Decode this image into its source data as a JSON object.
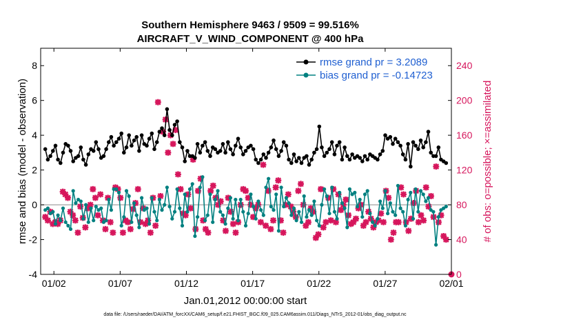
{
  "chart_data": {
    "type": "line",
    "title_line1": "Southern Hemisphere 9463 / 9509 = 99.516%",
    "title_line2": "AIRCRAFT_V_WIND_COMPONENT @ 400 hPa",
    "ylabel_left": "rmse and bias (model - observation)",
    "ylabel_right": "# of obs: o=possible; ×=assimilated",
    "xlabel": "Jan.01,2012 00:00:00 start",
    "footer": "data file: /Users/raeder/DAI/ATM_forcXX/CAM6_setup/f.e21.FHIST_BGC.f09_025.CAM6assim.011/Diags_NTrS_2012-01/obs_diag_output.nc",
    "xlim": [
      0,
      31
    ],
    "ylim_left": [
      -4,
      9
    ],
    "ylim_right": [
      0,
      260
    ],
    "x_ticks": [
      {
        "x": 1,
        "label": "01/02"
      },
      {
        "x": 6,
        "label": "01/07"
      },
      {
        "x": 11,
        "label": "01/12"
      },
      {
        "x": 16,
        "label": "01/17"
      },
      {
        "x": 21,
        "label": "01/22"
      },
      {
        "x": 26,
        "label": "01/27"
      },
      {
        "x": 31,
        "label": "02/01"
      }
    ],
    "y_ticks_left": [
      -4,
      -2,
      0,
      2,
      4,
      6,
      8
    ],
    "y_ticks_right": [
      0,
      40,
      80,
      120,
      160,
      200,
      240
    ],
    "series": [
      {
        "name": "rmse",
        "legend_label": "rmse grand pr = 3.2089",
        "axis": "left",
        "color": "#000000",
        "values": [
          3.2,
          2.6,
          2.8,
          3.1,
          3.4,
          2.6,
          2.4,
          3.0,
          3.5,
          3.4,
          3.1,
          2.5,
          2.7,
          2.8,
          3.3,
          2.6,
          2.3,
          2.9,
          3.2,
          3.1,
          3.6,
          3.2,
          2.7,
          2.8,
          3.2,
          3.6,
          3.9,
          3.4,
          3.6,
          3.8,
          4.1,
          3.0,
          3.3,
          4.0,
          3.4,
          3.7,
          3.9,
          3.1,
          4.0,
          3.5,
          3.4,
          3.8,
          4.1,
          3.2,
          3.6,
          4.2,
          4.4,
          4.0,
          5.5,
          4.3,
          4.0,
          4.6,
          4.8,
          3.6,
          3.3,
          2.5,
          3.1,
          2.8,
          2.8,
          2.7,
          3.5,
          3.0,
          3.4,
          3.6,
          3.1,
          2.8,
          3.3,
          3.2,
          3.0,
          3.1,
          3.5,
          3.0,
          3.6,
          3.2,
          2.9,
          3.4,
          3.8,
          3.3,
          2.9,
          3.1,
          3.3,
          3.4,
          3.2,
          2.6,
          2.4,
          2.6,
          2.9,
          2.7,
          3.0,
          3.3,
          3.7,
          3.2,
          2.8,
          3.1,
          3.6,
          3.4,
          2.6,
          2.4,
          2.9,
          2.5,
          2.7,
          2.4,
          2.7,
          2.8,
          2.3,
          2.6,
          3.0,
          3.2,
          4.5,
          3.3,
          2.8,
          3.0,
          3.2,
          3.6,
          2.9,
          3.4,
          3.6,
          2.6,
          3.3,
          2.8,
          2.6,
          2.9,
          2.7,
          2.8,
          2.7,
          2.5,
          2.8,
          2.6,
          2.9,
          2.8,
          2.7,
          2.6,
          2.9,
          3.1,
          4.0,
          3.8,
          3.9,
          3.5,
          3.8,
          3.6,
          3.4,
          2.9,
          2.6,
          3.5,
          2.2,
          3.6,
          3.4,
          3.2,
          3.7,
          3.3,
          3.6,
          4.2,
          3.0,
          2.8,
          2.8,
          3.3,
          2.6,
          2.5,
          2.4
        ]
      },
      {
        "name": "bias",
        "legend_label": "bias grand pr = -0.14723",
        "axis": "left",
        "color": "#008080",
        "values": [
          -0.3,
          -0.2,
          -0.5,
          -0.4,
          -1.1,
          -0.6,
          -0.9,
          -0.2,
          -1.0,
          -1.2,
          -1.4,
          0.8,
          0.1,
          0.3,
          0.2,
          -0.8,
          0.0,
          -1.0,
          -0.2,
          -0.9,
          -0.1,
          -0.3,
          -0.2,
          -1.0,
          -0.9,
          0.3,
          -0.3,
          0.9,
          0.9,
          0.7,
          -1.2,
          -0.7,
          0.8,
          0.5,
          -1.0,
          0.1,
          -0.6,
          -1.3,
          0.4,
          -0.3,
          -0.2,
          -1.1,
          0.4,
          -0.4,
          -0.9,
          0.3,
          -0.3,
          0.0,
          1.0,
          -0.1,
          -0.8,
          -0.4,
          0.9,
          -0.2,
          -1.2,
          0.6,
          -0.4,
          0.9,
          1.2,
          -1.8,
          -0.7,
          1.0,
          1.6,
          -0.9,
          -0.6,
          0.6,
          -1.0,
          0.3,
          0.8,
          -0.4,
          -0.6,
          -1.1,
          -0.2,
          0.4,
          -0.8,
          0.3,
          -0.9,
          0.3,
          -0.4,
          -1.2,
          -0.5,
          0.6,
          -0.1,
          -0.8,
          0.2,
          -0.3,
          -0.6,
          1.0,
          1.5,
          -0.1,
          -0.3,
          0.6,
          -1.5,
          1.0,
          -0.1,
          0.4,
          0.1,
          -0.6,
          -0.2,
          -0.9,
          -0.4,
          -1.0,
          0.5,
          -0.7,
          -0.3,
          -0.6,
          0.2,
          -0.9,
          -1.2,
          0.0,
          0.9,
          0.5,
          -0.5,
          1.0,
          -0.4,
          -0.8,
          0.7,
          0.1,
          -0.2,
          -1.3,
          0.9,
          0.6,
          0.7,
          -0.1,
          0.3,
          -0.7,
          0.6,
          0.8,
          -0.5,
          -1.0,
          -1.2,
          -0.8,
          0.2,
          -0.2,
          0.8,
          -0.5,
          0.1,
          -0.4,
          -0.6,
          1.1,
          -0.2,
          -0.4,
          -1.2,
          0.3,
          0.7,
          -0.8,
          0.9,
          -0.4,
          0.8,
          0.6,
          0.2,
          0.4,
          -0.3,
          -0.4,
          -2.3,
          -0.7,
          -0.3,
          -0.2,
          -0.1
        ]
      },
      {
        "name": "obs_possible_assimilated",
        "axis": "right",
        "color": "#d6165c",
        "values": [
          66,
          62,
          72,
          58,
          60,
          58,
          62,
          95,
          92,
          88,
          72,
          68,
          62,
          48,
          78,
          65,
          54,
          76,
          80,
          98,
          88,
          68,
          92,
          62,
          52,
          88,
          60,
          48,
          100,
          98,
          88,
          48,
          62,
          60,
          52,
          75,
          82,
          98,
          60,
          76,
          58,
          62,
          48,
          88,
          56,
          198,
          90,
          164,
          178,
          140,
          160,
          150,
          166,
          115,
          98,
          70,
          68,
          92,
          76,
          132,
          52,
          96,
          110,
          62,
          52,
          48,
          96,
          102,
          88,
          80,
          84,
          62,
          50,
          88,
          72,
          58,
          48,
          60,
          80,
          98,
          96,
          88,
          80,
          66,
          76,
          80,
          60,
          126,
          56,
          96,
          52,
          62,
          100,
          108,
          62,
          48,
          80,
          92,
          78,
          72,
          66,
          96,
          104,
          80,
          56,
          60,
          76,
          72,
          42,
          46,
          98,
          54,
          60,
          88,
          62,
          98,
          60,
          92,
          74,
          80,
          86,
          68,
          58,
          60,
          64,
          76,
          80,
          56,
          60,
          72,
          64,
          54,
          60,
          62,
          70,
          60,
          96,
          88,
          40,
          48,
          60,
          60,
          100,
          92,
          60,
          50,
          64,
          82,
          96,
          60,
          68,
          62,
          100,
          78,
          90,
          66,
          124,
          60,
          68,
          44,
          40
        ]
      }
    ]
  }
}
